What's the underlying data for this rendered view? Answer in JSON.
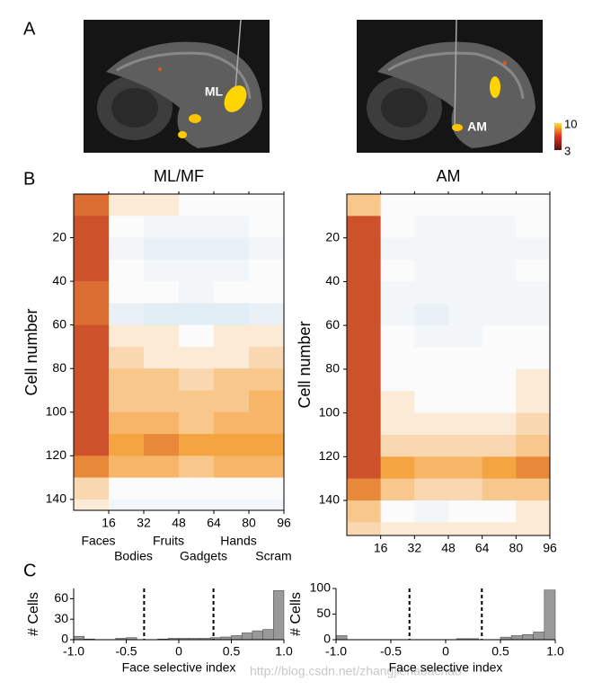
{
  "panel_letters": [
    "A",
    "B",
    "C"
  ],
  "panel_a": {
    "labels": [
      "ML",
      "AM"
    ],
    "colorbar_ticks": [
      10,
      3
    ]
  },
  "watermark": "http://blog.csdn.net/zhangjiehaoachao",
  "chart_data": [
    {
      "type": "heatmap",
      "title": "ML/MF",
      "ylabel": "Cell number",
      "xlim": [
        0,
        96
      ],
      "ylim": [
        0,
        145
      ],
      "xticks": [
        16,
        32,
        48,
        64,
        80,
        96
      ],
      "yticks": [
        20,
        40,
        60,
        80,
        100,
        120,
        140
      ],
      "category_labels": [
        "Faces",
        "Bodies",
        "Fruits",
        "Gadgets",
        "Hands",
        "Scram"
      ],
      "col_edges": [
        0,
        16,
        32,
        48,
        64,
        80,
        96
      ],
      "row_edges": [
        0,
        10,
        20,
        30,
        40,
        50,
        60,
        70,
        80,
        90,
        100,
        110,
        120,
        130,
        140,
        145
      ],
      "colormap": [
        "#2c4a9e",
        "#cfe3f0",
        "#fbfbfb",
        "#f5a442",
        "#b31b1b"
      ],
      "values": [
        [
          0.7,
          0.1,
          0.1,
          0.0,
          0.0,
          0.0
        ],
        [
          0.8,
          0.0,
          -0.1,
          -0.1,
          -0.1,
          0.0
        ],
        [
          0.8,
          -0.1,
          -0.2,
          -0.2,
          -0.2,
          -0.1
        ],
        [
          0.8,
          0.0,
          -0.1,
          -0.1,
          -0.1,
          0.0
        ],
        [
          0.7,
          0.0,
          0.0,
          -0.1,
          0.0,
          0.0
        ],
        [
          0.7,
          -0.2,
          -0.3,
          -0.3,
          -0.3,
          -0.2
        ],
        [
          0.8,
          0.1,
          0.1,
          0.0,
          0.1,
          0.1
        ],
        [
          0.8,
          0.2,
          0.1,
          0.1,
          0.1,
          0.2
        ],
        [
          0.8,
          0.3,
          0.3,
          0.2,
          0.3,
          0.3
        ],
        [
          0.8,
          0.3,
          0.3,
          0.3,
          0.3,
          0.4
        ],
        [
          0.8,
          0.4,
          0.4,
          0.3,
          0.4,
          0.4
        ],
        [
          0.8,
          0.5,
          0.6,
          0.5,
          0.5,
          0.5
        ],
        [
          0.6,
          0.4,
          0.4,
          0.3,
          0.4,
          0.4
        ],
        [
          0.2,
          0.0,
          0.0,
          0.0,
          0.0,
          0.0
        ],
        [
          0.1,
          -0.1,
          -0.1,
          -0.1,
          -0.1,
          -0.1
        ]
      ]
    },
    {
      "type": "heatmap",
      "title": "AM",
      "ylabel": "Cell number",
      "xlim": [
        0,
        96
      ],
      "ylim": [
        0,
        156
      ],
      "xticks": [
        16,
        32,
        48,
        64,
        80,
        96
      ],
      "yticks": [
        20,
        40,
        60,
        80,
        100,
        120,
        140
      ],
      "col_edges": [
        0,
        16,
        32,
        48,
        64,
        80,
        96
      ],
      "row_edges": [
        0,
        10,
        20,
        30,
        40,
        50,
        60,
        70,
        80,
        90,
        100,
        110,
        120,
        130,
        140,
        150,
        156
      ],
      "colormap": [
        "#2c4a9e",
        "#cfe3f0",
        "#fbfbfb",
        "#f5a442",
        "#b31b1b"
      ],
      "values": [
        [
          0.3,
          0.0,
          0.0,
          0.0,
          0.0,
          0.0
        ],
        [
          0.8,
          0.0,
          -0.1,
          -0.1,
          -0.1,
          0.0
        ],
        [
          0.8,
          -0.1,
          -0.1,
          -0.1,
          -0.1,
          -0.1
        ],
        [
          0.8,
          0.0,
          -0.1,
          -0.1,
          -0.1,
          0.0
        ],
        [
          0.8,
          -0.1,
          -0.1,
          -0.1,
          -0.1,
          -0.1
        ],
        [
          0.8,
          -0.1,
          -0.2,
          -0.1,
          -0.1,
          -0.1
        ],
        [
          0.8,
          0.0,
          -0.1,
          -0.1,
          0.0,
          0.0
        ],
        [
          0.8,
          0.0,
          0.0,
          0.0,
          0.0,
          0.0
        ],
        [
          0.8,
          0.0,
          0.0,
          0.0,
          0.0,
          0.1
        ],
        [
          0.8,
          0.1,
          0.0,
          0.0,
          0.0,
          0.1
        ],
        [
          0.8,
          0.1,
          0.1,
          0.1,
          0.1,
          0.2
        ],
        [
          0.8,
          0.2,
          0.2,
          0.2,
          0.2,
          0.3
        ],
        [
          0.8,
          0.5,
          0.4,
          0.4,
          0.5,
          0.6
        ],
        [
          0.6,
          0.3,
          0.2,
          0.2,
          0.3,
          0.3
        ],
        [
          0.3,
          0.0,
          -0.1,
          0.0,
          0.0,
          0.1
        ],
        [
          0.2,
          0.1,
          0.1,
          0.1,
          0.1,
          0.1
        ]
      ]
    },
    {
      "type": "histogram",
      "xlabel": "Face selective index",
      "ylabel": "# Cells",
      "color": "#999999",
      "bins": [
        -1.0,
        -0.9,
        -0.8,
        -0.7,
        -0.6,
        -0.5,
        -0.4,
        -0.3,
        -0.2,
        -0.1,
        0.0,
        0.1,
        0.2,
        0.3,
        0.4,
        0.5,
        0.6,
        0.7,
        0.8,
        0.9,
        1.0
      ],
      "counts": [
        5,
        1,
        0,
        0,
        2,
        3,
        0,
        0,
        1,
        2,
        2,
        2,
        2,
        3,
        4,
        6,
        10,
        13,
        15,
        72
      ],
      "thresholds": [
        -0.33,
        0.33
      ],
      "xlim": [
        -1,
        1
      ],
      "ylim": [
        0,
        75
      ],
      "xticks": [
        {
          "value": -1,
          "label": "-1.0"
        },
        -0.5,
        0,
        0.5,
        {
          "value": 1,
          "label": "1.0"
        }
      ],
      "yticks": [
        0,
        30,
        60
      ]
    },
    {
      "type": "histogram",
      "xlabel": "Face selective index",
      "ylabel": "# Cells",
      "color": "#999999",
      "bins": [
        -1.0,
        -0.9,
        -0.8,
        -0.7,
        -0.6,
        -0.5,
        -0.4,
        -0.3,
        -0.2,
        -0.1,
        0.0,
        0.1,
        0.2,
        0.3,
        0.4,
        0.5,
        0.6,
        0.7,
        0.8,
        0.9,
        1.0
      ],
      "counts": [
        8,
        0,
        0,
        0,
        0,
        0,
        0,
        0,
        0,
        0,
        0,
        2,
        2,
        0,
        0,
        5,
        8,
        10,
        15,
        97
      ],
      "thresholds": [
        -0.33,
        0.33
      ],
      "xlim": [
        -1,
        1
      ],
      "ylim": [
        0,
        100
      ],
      "xticks": [
        {
          "value": -1,
          "label": "-1.0"
        },
        -0.5,
        0,
        0.5,
        {
          "value": 1,
          "label": "1.0"
        }
      ],
      "yticks": [
        0,
        50,
        100
      ]
    }
  ]
}
